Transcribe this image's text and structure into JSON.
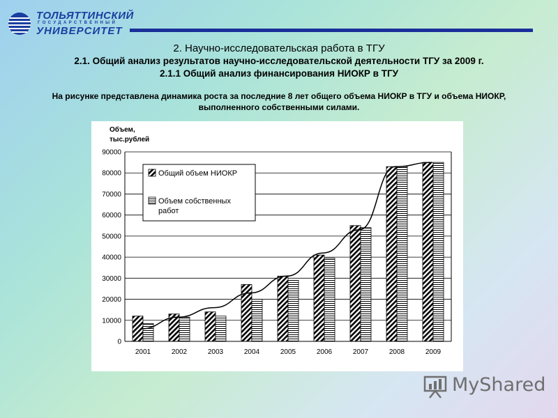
{
  "logo": {
    "line1": "ТОЛЬЯТТИНСКИЙ",
    "line2": "ГОСУДАРСТВЕННЫЙ",
    "line3": "УНИВЕРСИТЕТ"
  },
  "header": {
    "title": "2. Научно-исследовательская работа в ТГУ",
    "subtitle1": "2.1. Общий анализ результатов научно-исследовательской деятельности ТГУ за 2009 г.",
    "subtitle2": "2.1.1 Общий анализ финансирования НИОКР в ТГУ"
  },
  "description": {
    "line1": "На рисунке представлена динамика роста за последние 8 лет общего объема НИОКР в ТГУ и объема НИОКР,",
    "line2": "выполненного собственными силами."
  },
  "chart_data": {
    "type": "bar",
    "ylabel_line1": "Объем,",
    "ylabel_line2": "тыс.рублей",
    "ylim": [
      0,
      90000
    ],
    "yticks": [
      "0",
      "10000",
      "20000",
      "30000",
      "40000",
      "50000",
      "60000",
      "70000",
      "80000",
      "90000"
    ],
    "categories": [
      "2001",
      "2002",
      "2003",
      "2004",
      "2005",
      "2006",
      "2007",
      "2008",
      "2009"
    ],
    "legend_position": "top-left",
    "grid": true,
    "series": [
      {
        "name": "Общий объем НИОКР",
        "values": [
          12000,
          13000,
          14000,
          27000,
          31000,
          41000,
          55000,
          83000,
          85000
        ]
      },
      {
        "name_line1": "Объем собственных",
        "name_line2": "работ",
        "values": [
          8500,
          11500,
          12000,
          20000,
          29000,
          39500,
          54000,
          83000,
          85000
        ]
      }
    ],
    "trend_line": [
      6000,
      11500,
      16000,
      23000,
      31000,
      42000,
      53000,
      83000,
      85000
    ]
  },
  "watermark": {
    "text": "MyShared"
  },
  "colors": {
    "brand_blue": "#1a3ea0",
    "header_rule": "#1a2f9a",
    "watermark_gray": "#6f6f6f"
  }
}
